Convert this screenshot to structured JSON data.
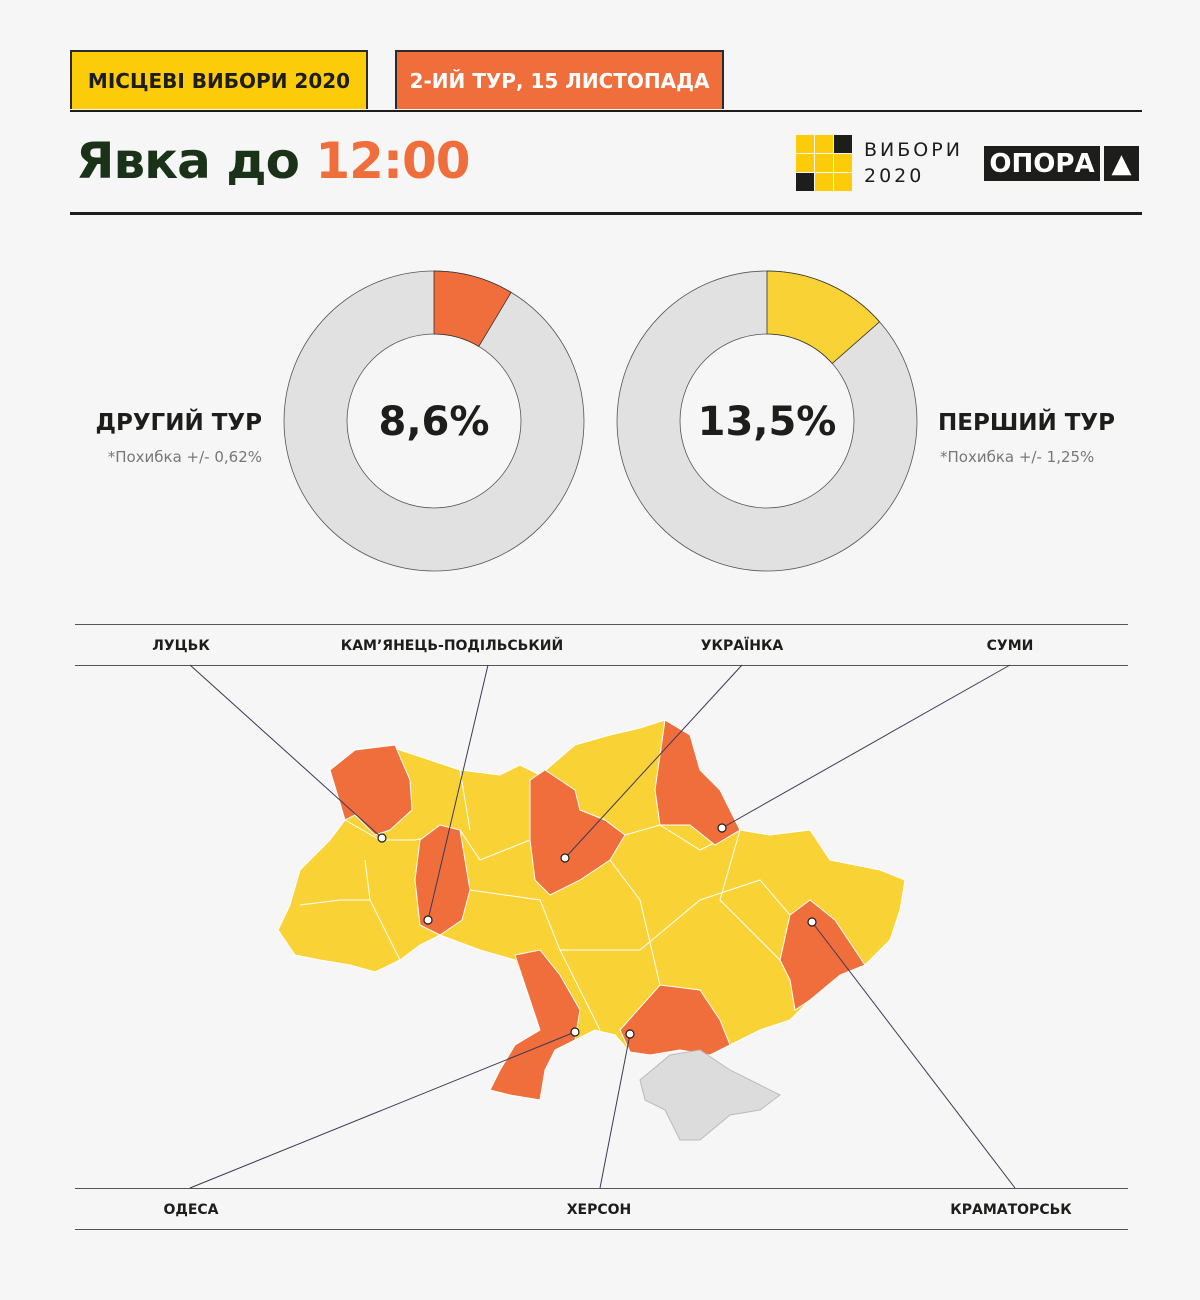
{
  "header": {
    "tab_election": "МІСЦЕВІ ВИБОРИ 2020",
    "tab_round": "2-ИЙ ТУР, 15 ЛИСТОПАДА",
    "title_prefix": "Явка до",
    "title_time": "12:00",
    "logo_vybory_line1": "ВИБОРИ",
    "logo_vybory_line2": "2020",
    "logo_opora": "ОПОРА"
  },
  "colors": {
    "yellow": "#f9d236",
    "orange": "#ef6e3c",
    "gray": "#e1e1e1",
    "dark": "#1d1d1b",
    "title_dark": "#1a3318"
  },
  "chart_data": [
    {
      "type": "pie",
      "subtype": "donut",
      "label": "ДРУГИЙ ТУР",
      "note": "*Похибка +/- 0,62%",
      "value": 8.6,
      "value_text": "8,6%",
      "total": 100,
      "color": "#ef6e3c"
    },
    {
      "type": "pie",
      "subtype": "donut",
      "label": "ПЕРШИЙ ТУР",
      "note": "*Похибка +/- 1,25%",
      "value": 13.5,
      "value_text": "13,5%",
      "total": 100,
      "color": "#f9d236"
    }
  ],
  "map": {
    "top_labels": [
      "ЛУЦЬК",
      "КАМ’ЯНЕЦЬ-ПОДІЛЬСЬКИЙ",
      "УКРАЇНКА",
      "СУМИ"
    ],
    "bottom_labels": [
      "ОДЕСА",
      "ХЕРСОН",
      "КРАМАТОРСЬК"
    ]
  }
}
